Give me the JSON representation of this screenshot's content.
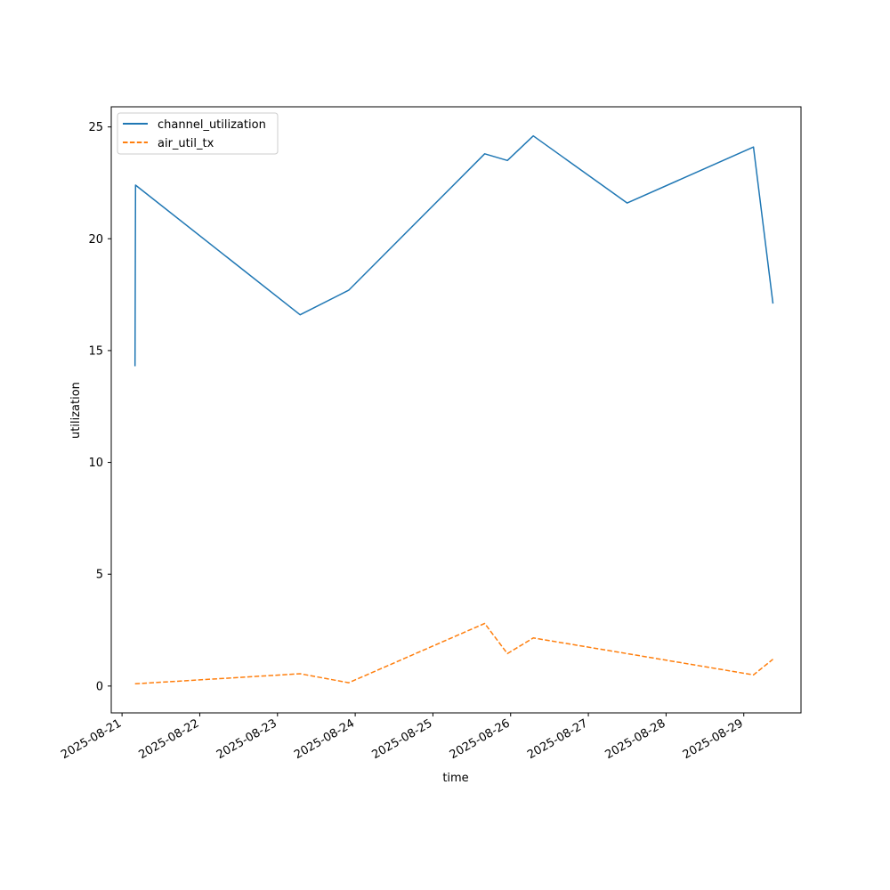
{
  "chart_data": {
    "type": "line",
    "title": "",
    "xlabel": "time",
    "ylabel": "utilization",
    "x_type": "datetime",
    "xlim": [
      "2025-08-20T20:40",
      "2025-08-29T17:40"
    ],
    "ylim": [
      -1.2,
      25.9
    ],
    "xticks": [
      "2025-08-21",
      "2025-08-22",
      "2025-08-23",
      "2025-08-24",
      "2025-08-25",
      "2025-08-26",
      "2025-08-27",
      "2025-08-28",
      "2025-08-29"
    ],
    "yticks": [
      0,
      5,
      10,
      15,
      20,
      25
    ],
    "grid": false,
    "legend": "top-left",
    "x": [
      "2025-08-21T04:00",
      "2025-08-21T04:10",
      "2025-08-23T07:00",
      "2025-08-23T22:00",
      "2025-08-25T16:00",
      "2025-08-25T23:00",
      "2025-08-26T07:00",
      "2025-08-27T12:00",
      "2025-08-29T03:00",
      "2025-08-29T09:00"
    ],
    "series": [
      {
        "name": "channel_utilization",
        "color": "#1f77b4",
        "dash": "solid",
        "values": [
          14.3,
          22.4,
          16.6,
          17.7,
          23.8,
          23.5,
          24.6,
          21.6,
          24.1,
          17.1
        ]
      },
      {
        "name": "air_util_tx",
        "color": "#ff7f0e",
        "dash": "dashed",
        "values": [
          0.1,
          0.1,
          0.55,
          0.15,
          2.8,
          1.45,
          2.15,
          1.45,
          0.5,
          1.2
        ]
      }
    ]
  }
}
